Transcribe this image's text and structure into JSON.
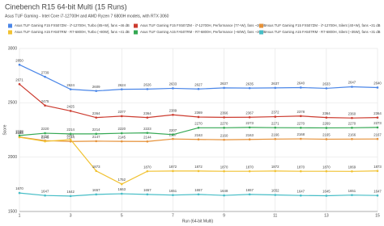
{
  "chart_data": {
    "type": "line",
    "title": "Cinebench R15 64-bit Multi (15 Runs)",
    "subtitle": "Asus TUF Gaming - Intel Core i7-12700H and AMD Ryzen 7 6800H models, with RTX 3060",
    "x_label": "Run (64-bit Multi)",
    "y_label": "Score",
    "x": [
      1,
      2,
      3,
      4,
      5,
      6,
      7,
      8,
      9,
      10,
      11,
      12,
      13,
      14,
      15
    ],
    "xlim": [
      1,
      15
    ],
    "xticks": [
      1,
      3,
      5,
      7,
      9,
      11,
      13,
      15
    ],
    "ylim": [
      1500,
      3000
    ],
    "yticks": [
      1500,
      2000,
      2500,
      3000
    ],
    "grid": true,
    "series": [
      {
        "name": "Asus TUF Gaming F15 FX507ZM - i7-12700H, Turbo (85+W), fans ~46 dB",
        "color": "#4a86e8",
        "values": [
          2850,
          2739,
          2624,
          2609,
          2624,
          2626,
          2633,
          2627,
          2637,
          2635,
          2637,
          2640,
          2633,
          2647,
          2640
        ]
      },
      {
        "name": "Asus TUF Gaming F15 FX507ZM - i7-12700H, Performance (77+W), fans ~35 dB",
        "color": "#cc3b2f",
        "values": [
          2671,
          2475,
          2425,
          2364,
          2377,
          2364,
          2389,
          2369,
          2366,
          2367,
          2372,
          2378,
          2364,
          2360,
          2364
        ]
      },
      {
        "name": "Asus TUF Gaming F15 FX507ZM - i7-12700H, Silent (40+W), fans ~31 dB",
        "color": "#e69138",
        "values": [
          2185,
          2152,
          2144,
          2147,
          2145,
          2144,
          2167,
          2163,
          2160,
          2163,
          2166,
          2168,
          2165,
          2166,
          2167
        ]
      },
      {
        "name": "Asus TUF Gaming A15 FA507RM - R7-6800H, Turbo (~80W), fans ~41 dB",
        "color": "#f1c232",
        "values": [
          2183,
          2145,
          2161,
          1873,
          1752,
          1870,
          1872,
          1872,
          1870,
          1870,
          1872,
          1870,
          1870,
          1869,
          1873
        ]
      },
      {
        "name": "Asus TUF Gaming A15 FA507RM - R7-6800H, Performance (~60W), fans ~35 dB",
        "color": "#34a853",
        "values": [
          2199,
          2220,
          2214,
          2214,
          2220,
          2223,
          2207,
          2270,
          2270,
          2273,
          2271,
          2270,
          2269,
          2270,
          2273
        ]
      },
      {
        "name": "Asus TUF Gaming A15 FA507RM - R7-6800H, Silent (~35W), fans ~31 dB",
        "color": "#46bdc6",
        "values": [
          1670,
          1647,
          1642,
          1657,
          1663,
          1657,
          1651,
          1657,
          1648,
          1657,
          1652,
          1647,
          1645,
          1651,
          1647
        ]
      }
    ]
  }
}
